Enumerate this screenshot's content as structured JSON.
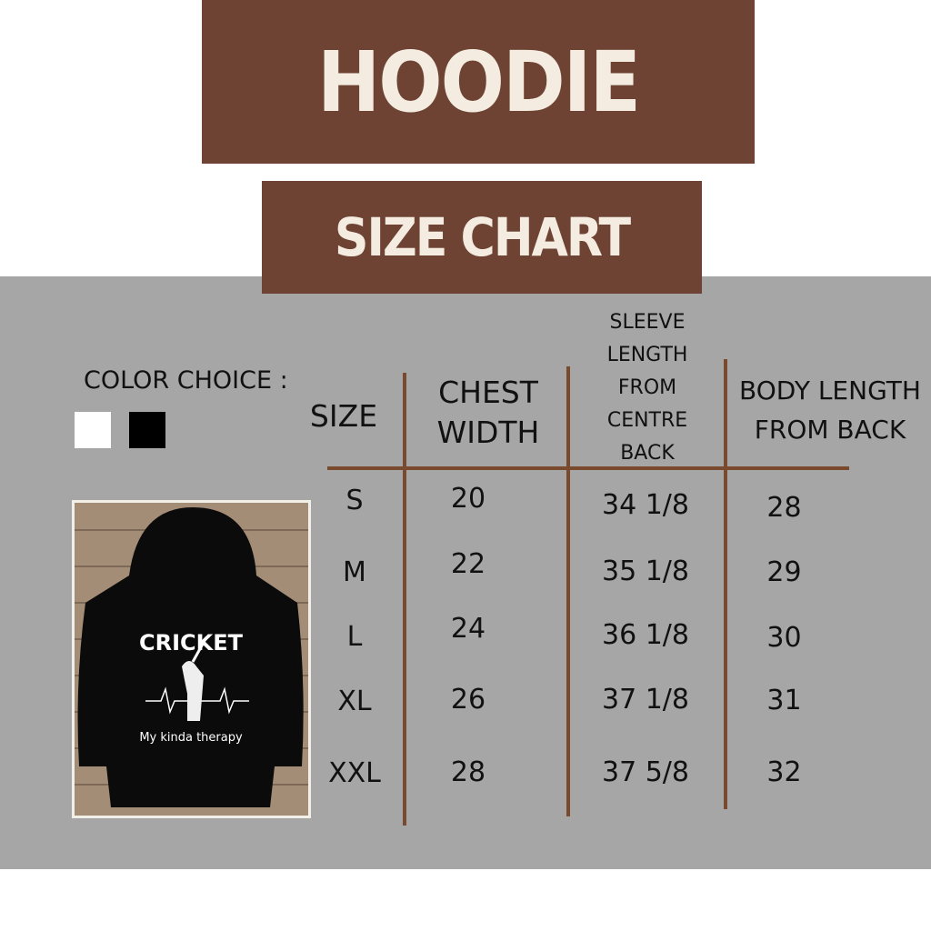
{
  "header": {
    "title": "HOODIE",
    "subtitle": "SIZE CHART"
  },
  "colors": {
    "brand_brown": "#6e4334",
    "title_text": "#f4ece0",
    "panel_gray": "#a6a6a6",
    "line_brown": "#7a4a2e"
  },
  "color_choice": {
    "label": "COLOR CHOICE :",
    "swatches": [
      {
        "name": "white",
        "hex": "#ffffff"
      },
      {
        "name": "black",
        "hex": "#000000"
      }
    ]
  },
  "product_image": {
    "print_title": "CRICKET",
    "print_tagline": "My kinda therapy"
  },
  "table": {
    "headers": [
      "SIZE",
      "CHEST WIDTH",
      "SLEEVE LENGTH FROM CENTRE BACK",
      "BODY LENGTH FROM BACK"
    ],
    "rows": [
      [
        "S",
        "20",
        "34 1/8",
        "28"
      ],
      [
        "M",
        "22",
        "35 1/8",
        "29"
      ],
      [
        "L",
        "24",
        "36 1/8",
        "30"
      ],
      [
        "XL",
        "26",
        "37 1/8",
        "31"
      ],
      [
        "XXL",
        "28",
        "37 5/8",
        "32"
      ]
    ]
  }
}
